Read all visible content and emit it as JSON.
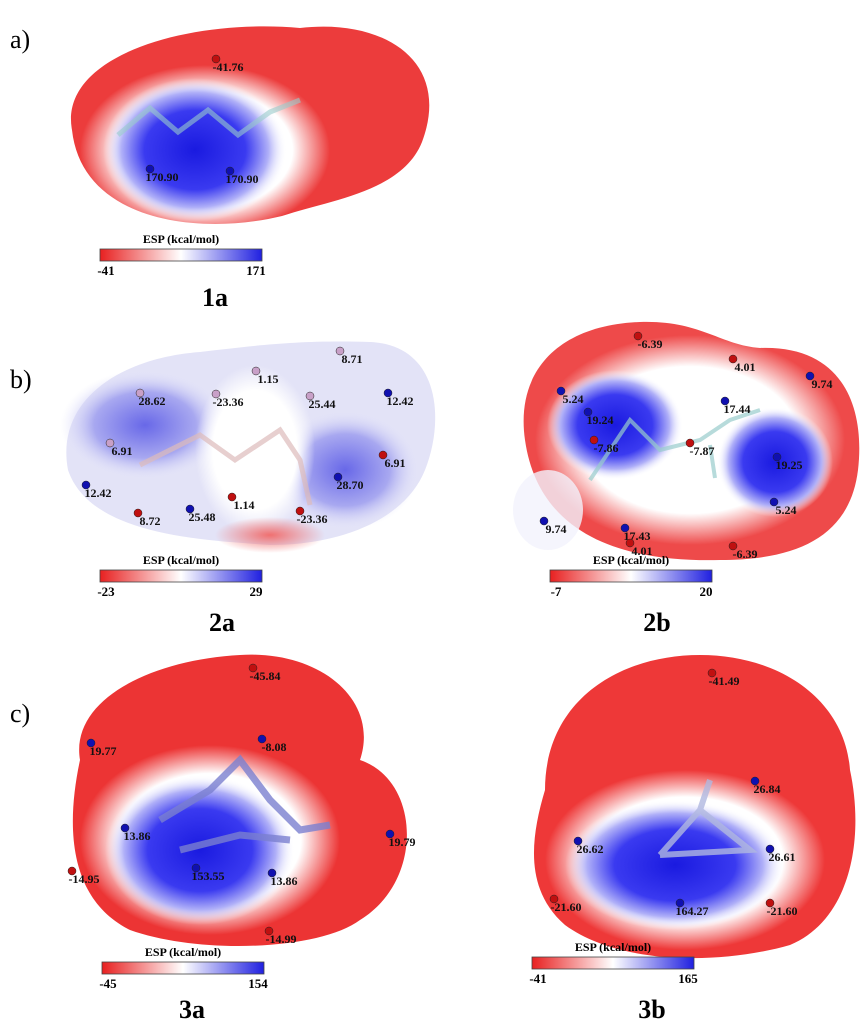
{
  "row_labels": [
    "a)",
    "b)",
    "c)"
  ],
  "maps": [
    {
      "name": "1a",
      "colorbar": {
        "title": "ESP (kcal/mol)",
        "min": "-41",
        "max": "171"
      },
      "points": [
        "-41.76",
        "170.90",
        "170.90"
      ]
    },
    {
      "name": "2a",
      "colorbar": {
        "title": "ESP (kcal/mol)",
        "min": "-23",
        "max": "29"
      },
      "points": [
        "28.62",
        "-23.36",
        "1.15",
        "8.71",
        "25.44",
        "12.42",
        "6.91",
        "6.91",
        "28.70",
        "12.42",
        "8.72",
        "25.48",
        "1.14",
        "-23.36"
      ]
    },
    {
      "name": "2b",
      "colorbar": {
        "title": "ESP (kcal/mol)",
        "min": "-7",
        "max": "20"
      },
      "points": [
        "-6.39",
        "4.01",
        "9.74",
        "5.24",
        "17.44",
        "19.24",
        "-7.86",
        "-7.87",
        "19.25",
        "5.24",
        "17.43",
        "9.74",
        "4.01",
        "-6.39"
      ]
    },
    {
      "name": "3a",
      "colorbar": {
        "title": "ESP (kcal/mol)",
        "min": "-45",
        "max": "154"
      },
      "points": [
        "-45.84",
        "19.77",
        "-8.08",
        "19.79",
        "13.86",
        "153.55",
        "13.86",
        "-14.95",
        "-14.99"
      ]
    },
    {
      "name": "3b",
      "colorbar": {
        "title": "ESP (kcal/mol)",
        "min": "-41",
        "max": "165"
      },
      "points": [
        "-41.49",
        "26.84",
        "26.62",
        "26.61",
        "-21.60",
        "164.27",
        "-21.60"
      ]
    }
  ]
}
